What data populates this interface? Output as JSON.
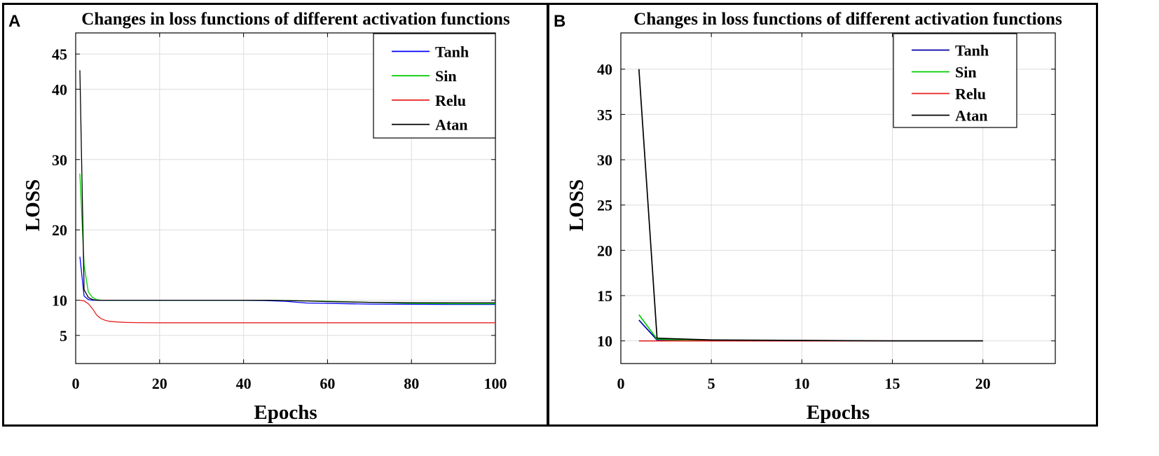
{
  "chart_data": [
    {
      "panel_label": "A",
      "type": "line",
      "title": "Changes in loss functions of different activation functions",
      "xlabel": "Epochs",
      "ylabel": "LOSS",
      "xlim": [
        0,
        100
      ],
      "ylim": [
        1,
        48
      ],
      "xticks": [
        0,
        20,
        40,
        60,
        80,
        100
      ],
      "yticks": [
        5,
        10,
        20,
        30,
        40,
        45
      ],
      "grid": true,
      "legend_position": "top-right",
      "series": [
        {
          "name": "Tanh",
          "color": "#0000ff",
          "x": [
            1,
            2,
            3,
            4,
            5,
            6,
            8,
            10,
            20,
            30,
            40,
            45,
            50,
            55,
            60,
            70,
            80,
            90,
            100
          ],
          "y": [
            16.2,
            10.6,
            10.1,
            10.0,
            10.0,
            9.98,
            9.98,
            9.98,
            9.98,
            9.98,
            9.98,
            9.95,
            9.85,
            9.6,
            9.55,
            9.45,
            9.42,
            9.4,
            9.4
          ]
        },
        {
          "name": "Sin",
          "color": "#00cc00",
          "x": [
            1,
            2,
            3,
            4,
            5,
            6,
            8,
            10,
            20,
            30,
            40,
            45,
            50,
            55,
            60,
            70,
            80,
            90,
            100
          ],
          "y": [
            28.0,
            15.0,
            11.2,
            10.4,
            10.1,
            10.0,
            10.0,
            10.0,
            10.0,
            10.0,
            10.0,
            10.0,
            9.95,
            9.9,
            9.85,
            9.7,
            9.55,
            9.5,
            9.5
          ]
        },
        {
          "name": "Relu",
          "color": "#e62020",
          "x": [
            1,
            2,
            3,
            4,
            5,
            6,
            7,
            8,
            10,
            12,
            15,
            20,
            40,
            60,
            80,
            100
          ],
          "y": [
            10.0,
            9.9,
            9.5,
            8.8,
            7.9,
            7.4,
            7.15,
            7.0,
            6.9,
            6.85,
            6.82,
            6.8,
            6.8,
            6.8,
            6.8,
            6.8
          ]
        },
        {
          "name": "Atan",
          "color": "#000000",
          "x": [
            1,
            2,
            3,
            4,
            5,
            6,
            8,
            10,
            20,
            30,
            40,
            45,
            50,
            55,
            60,
            70,
            80,
            90,
            100
          ],
          "y": [
            42.7,
            11.5,
            10.4,
            10.1,
            10.0,
            10.0,
            10.0,
            10.0,
            10.0,
            10.0,
            10.0,
            10.0,
            9.95,
            9.9,
            9.8,
            9.7,
            9.65,
            9.65,
            9.65
          ]
        }
      ]
    },
    {
      "panel_label": "B",
      "type": "line",
      "title": "Changes in loss functions of different activation functions",
      "xlabel": "Epochs",
      "ylabel": "LOSS",
      "xlim": [
        0,
        24
      ],
      "ylim": [
        7.5,
        44
      ],
      "xticks": [
        0,
        5,
        10,
        15,
        20
      ],
      "yticks": [
        10,
        15,
        20,
        25,
        30,
        35,
        40
      ],
      "grid": true,
      "legend_position": "top-right",
      "series": [
        {
          "name": "Tanh",
          "color": "#0000aa",
          "x": [
            1,
            2,
            5,
            10,
            15,
            20
          ],
          "y": [
            12.3,
            10.1,
            10.0,
            10.0,
            10.0,
            10.0
          ]
        },
        {
          "name": "Sin",
          "color": "#00cc00",
          "x": [
            1,
            2,
            5,
            10,
            15,
            20
          ],
          "y": [
            12.9,
            10.2,
            10.05,
            10.0,
            10.0,
            10.0
          ]
        },
        {
          "name": "Relu",
          "color": "#e62020",
          "x": [
            1,
            2,
            5,
            10,
            15,
            20
          ],
          "y": [
            10.0,
            10.0,
            10.0,
            10.0,
            10.0,
            10.0
          ]
        },
        {
          "name": "Atan",
          "color": "#000000",
          "x": [
            1,
            2,
            5,
            10,
            15,
            20
          ],
          "y": [
            40.0,
            10.3,
            10.1,
            10.05,
            10.0,
            10.0
          ]
        }
      ]
    }
  ]
}
